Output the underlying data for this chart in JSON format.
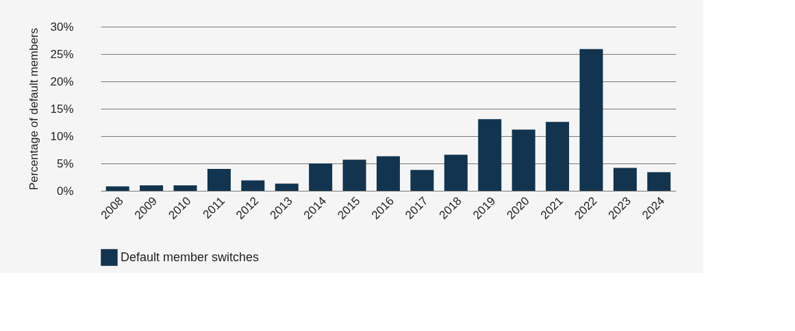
{
  "chart_data": {
    "type": "bar",
    "ylabel": "Percentage of default members",
    "categories": [
      "2008",
      "2009",
      "2010",
      "2011",
      "2012",
      "2013",
      "2014",
      "2015",
      "2016",
      "2017",
      "2018",
      "2019",
      "2020",
      "2021",
      "2022",
      "2023",
      "2024"
    ],
    "series": [
      {
        "name": "Default member switches",
        "color": "#12344f",
        "values": [
          0.8,
          1.0,
          1.0,
          4.0,
          1.9,
          1.3,
          5.0,
          5.7,
          6.3,
          3.8,
          6.6,
          13.1,
          11.2,
          12.6,
          25.9,
          4.2,
          3.4
        ]
      }
    ],
    "ylim": [
      0,
      30
    ],
    "yticks": [
      {
        "value": 0,
        "label": "0%"
      },
      {
        "value": 5,
        "label": "5%"
      },
      {
        "value": 10,
        "label": "10%"
      },
      {
        "value": 15,
        "label": "15%"
      },
      {
        "value": 20,
        "label": "20%"
      },
      {
        "value": 25,
        "label": "25%"
      },
      {
        "value": 30,
        "label": "30%"
      }
    ],
    "grid": "y",
    "legend": "bottom"
  }
}
